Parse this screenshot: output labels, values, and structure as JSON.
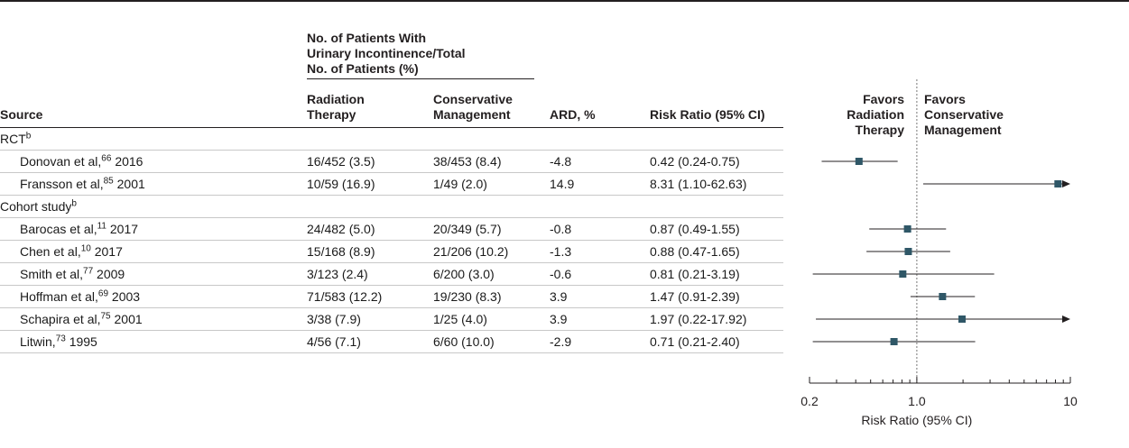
{
  "table": {
    "group_header": [
      "No. of Patients With",
      "Urinary Incontinence/Total",
      "No. of Patients (%)"
    ],
    "columns": {
      "source": "Source",
      "radiation": [
        "Radiation",
        "Therapy"
      ],
      "conservative": [
        "Conservative",
        "Management"
      ],
      "ard": "ARD, %",
      "rr": "Risk Ratio (95% CI)"
    },
    "rows": [
      {
        "type": "group",
        "label": "RCT",
        "sup": "b"
      },
      {
        "type": "study",
        "author": "Donovan et al,",
        "ref": "66",
        "year": "2016",
        "radiation": "16/452 (3.5)",
        "conservative": "38/453 (8.4)",
        "ard": "-4.8",
        "rr": "0.42 (0.24-0.75)"
      },
      {
        "type": "study",
        "author": "Fransson et al,",
        "ref": "85",
        "year": "2001",
        "radiation": "10/59 (16.9)",
        "conservative": "1/49 (2.0)",
        "ard": "14.9",
        "rr": "8.31 (1.10-62.63)"
      },
      {
        "type": "group",
        "label": "Cohort study",
        "sup": "b"
      },
      {
        "type": "study",
        "author": "Barocas et al,",
        "ref": "11",
        "year": "2017",
        "radiation": "24/482 (5.0)",
        "conservative": "20/349 (5.7)",
        "ard": "-0.8",
        "rr": "0.87 (0.49-1.55)"
      },
      {
        "type": "study",
        "author": "Chen et al,",
        "ref": "10",
        "year": "2017",
        "radiation": "15/168 (8.9)",
        "conservative": "21/206 (10.2)",
        "ard": "-1.3",
        "rr": "0.88 (0.47-1.65)"
      },
      {
        "type": "study",
        "author": "Smith et al,",
        "ref": "77",
        "year": "2009",
        "radiation": "3/123 (2.4)",
        "conservative": "6/200 (3.0)",
        "ard": "-0.6",
        "rr": "0.81 (0.21-3.19)"
      },
      {
        "type": "study",
        "author": "Hoffman et al,",
        "ref": "69",
        "year": "2003",
        "radiation": "71/583 (12.2)",
        "conservative": "19/230 (8.3)",
        "ard": "3.9",
        "rr": "1.47 (0.91-2.39)"
      },
      {
        "type": "study",
        "author": "Schapira et al,",
        "ref": "75",
        "year": "2001",
        "radiation": "3/38 (7.9)",
        "conservative": "1/25 (4.0)",
        "ard": "3.9",
        "rr": "1.97 (0.22-17.92)"
      },
      {
        "type": "study",
        "author": "Litwin,",
        "ref": "73",
        "year": "1995",
        "radiation": "4/56 (7.1)",
        "conservative": "6/60 (10.0)",
        "ard": "-2.9",
        "rr": "0.71 (0.21-2.40)"
      }
    ]
  },
  "chart_data": {
    "type": "scatter",
    "title": "",
    "xlabel": "Risk Ratio (95% CI)",
    "xscale": "log",
    "xlim": [
      0.2,
      10
    ],
    "xticks": [
      "0.2",
      "1.0",
      "10"
    ],
    "reference_line": 1.0,
    "favors_left": [
      "Favors",
      "Radiation",
      "Therapy"
    ],
    "favors_right": [
      "Favors",
      "Conservative",
      "Management"
    ],
    "marker_color": "#2f5767",
    "points": [
      {
        "row": 1,
        "rr": 0.42,
        "lower": 0.24,
        "upper": 0.75
      },
      {
        "row": 2,
        "rr": 8.31,
        "lower": 1.1,
        "upper": 62.63
      },
      {
        "row": 4,
        "rr": 0.87,
        "lower": 0.49,
        "upper": 1.55
      },
      {
        "row": 5,
        "rr": 0.88,
        "lower": 0.47,
        "upper": 1.65
      },
      {
        "row": 6,
        "rr": 0.81,
        "lower": 0.21,
        "upper": 3.19
      },
      {
        "row": 7,
        "rr": 1.47,
        "lower": 0.91,
        "upper": 2.39
      },
      {
        "row": 8,
        "rr": 1.97,
        "lower": 0.22,
        "upper": 17.92
      },
      {
        "row": 9,
        "rr": 0.71,
        "lower": 0.21,
        "upper": 2.4
      }
    ]
  }
}
